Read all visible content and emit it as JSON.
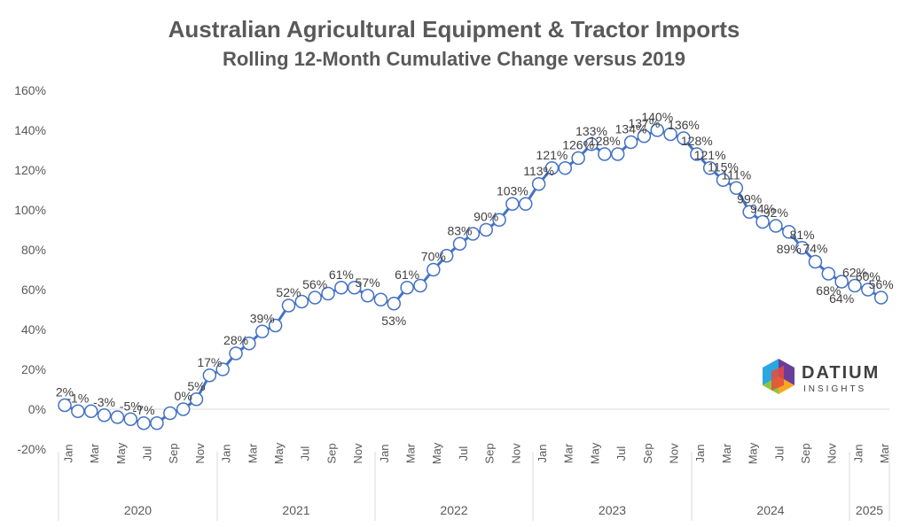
{
  "title": "Australian Agricultural Equipment & Tractor Imports",
  "subtitle": "Rolling 12-Month Cumulative Change versus 2019",
  "logo": {
    "name": "DATIUM",
    "sub": "INSIGHTS",
    "colors": [
      "#2aa7df",
      "#8cc63f",
      "#e94b3c",
      "#f7a823",
      "#6a3d9a"
    ]
  },
  "chart_data": {
    "type": "line",
    "series_color": "#4472c4",
    "marker_fill": "#ffffff",
    "y_ticks": [
      "160%",
      "140%",
      "120%",
      "100%",
      "80%",
      "60%",
      "40%",
      "20%",
      "0%",
      "-20%"
    ],
    "ylim": [
      -20,
      160
    ],
    "grid": false,
    "month_labels": [
      "Jan",
      "Mar",
      "May",
      "Jul",
      "Sep",
      "Nov",
      "Jan",
      "Mar",
      "May",
      "Jul",
      "Sep",
      "Nov",
      "Jan",
      "Mar",
      "May",
      "Jul",
      "Sep",
      "Nov",
      "Jan",
      "Mar",
      "May",
      "Jul",
      "Sep",
      "Nov",
      "Jan",
      "Mar",
      "May",
      "Jul",
      "Sep",
      "Nov",
      "Jan",
      "Mar"
    ],
    "years": [
      "2020",
      "2021",
      "2022",
      "2023",
      "2024",
      "2025"
    ],
    "values": [
      2,
      -1,
      -1,
      -3,
      -4,
      -5,
      -7,
      -7,
      -2,
      0,
      5,
      17,
      20,
      28,
      33,
      39,
      42,
      52,
      54,
      56,
      58,
      61,
      61,
      57,
      55,
      53,
      61,
      62,
      70,
      77,
      83,
      88,
      90,
      95,
      103,
      103,
      113,
      121,
      121,
      126,
      133,
      128,
      128,
      134,
      137,
      140,
      138,
      136,
      128,
      121,
      115,
      111,
      99,
      94,
      92,
      89,
      81,
      74,
      68,
      64,
      62,
      60,
      56
    ],
    "labels": [
      "2%",
      "-1%",
      "",
      "-3%",
      "",
      "-5%",
      "-7%",
      "",
      "",
      "0%",
      "5%",
      "17%",
      "",
      "28%",
      "",
      "39%",
      "",
      "52%",
      "",
      "56%",
      "",
      "61%",
      "",
      "57%",
      "",
      "53%",
      "61%",
      "",
      "70%",
      "",
      "83%",
      "",
      "90%",
      "",
      "103%",
      "",
      "113%",
      "121%",
      "",
      "126%",
      "133%",
      "128%",
      "",
      "134%",
      "137%",
      "140%",
      "",
      "136%",
      "128%",
      "121%",
      "115%",
      "111%",
      "99%",
      "94%",
      "92%",
      "89%",
      "81%",
      "74%",
      "68%",
      "64%",
      "62%",
      "60%",
      "56%"
    ]
  }
}
